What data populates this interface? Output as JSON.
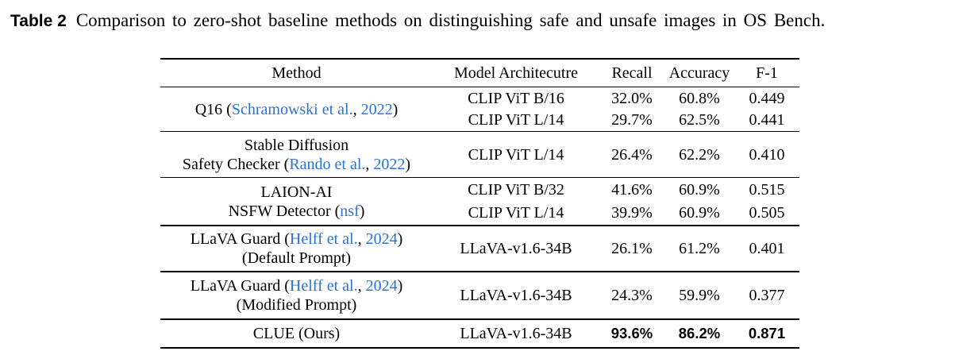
{
  "caption": {
    "label": "Table 2",
    "text": "Comparison to zero-shot baseline methods on distinguishing safe and unsafe images in OS Bench."
  },
  "colors": {
    "link": "#2a72d4",
    "text": "#000000",
    "rule": "#000000",
    "background": "#ffffff"
  },
  "table": {
    "headers": [
      "Method",
      "Model Architecutre",
      "Recall",
      "Accuracy",
      "F-1"
    ],
    "sections": [
      {
        "method_lines": [
          [
            {
              "t": "Q16 ("
            },
            {
              "t": "Schramowski et al.",
              "link": true
            },
            {
              "t": ", "
            },
            {
              "t": "2022",
              "link": true
            },
            {
              "t": ")"
            }
          ]
        ],
        "entries": [
          {
            "model": "CLIP ViT B/16",
            "recall": "32.0%",
            "accuracy": "60.8%",
            "f1": "0.449"
          },
          {
            "model": "CLIP ViT L/14",
            "recall": "29.7%",
            "accuracy": "62.5%",
            "f1": "0.441"
          }
        ],
        "bold_values": false
      },
      {
        "method_lines": [
          [
            {
              "t": "Stable Diffusion"
            }
          ],
          [
            {
              "t": "Safety Checker ("
            },
            {
              "t": "Rando et al.",
              "link": true
            },
            {
              "t": ", "
            },
            {
              "t": "2022",
              "link": true
            },
            {
              "t": ")"
            }
          ]
        ],
        "entries": [
          {
            "model": "CLIP ViT L/14",
            "recall": "26.4%",
            "accuracy": "62.2%",
            "f1": "0.410"
          }
        ],
        "bold_values": false
      },
      {
        "method_lines": [
          [
            {
              "t": "LAION-AI"
            }
          ],
          [
            {
              "t": "NSFW Detector ("
            },
            {
              "t": "nsf",
              "link": true
            },
            {
              "t": ")"
            }
          ]
        ],
        "entries": [
          {
            "model": "CLIP ViT B/32",
            "recall": "41.6%",
            "accuracy": "60.9%",
            "f1": "0.515"
          },
          {
            "model": "CLIP ViT L/14",
            "recall": "39.9%",
            "accuracy": "60.9%",
            "f1": "0.505"
          }
        ],
        "bold_values": false
      },
      {
        "method_lines": [
          [
            {
              "t": "LLaVA Guard ("
            },
            {
              "t": "Helff et al.",
              "link": true
            },
            {
              "t": ", "
            },
            {
              "t": "2024",
              "link": true
            },
            {
              "t": ")"
            }
          ],
          [
            {
              "t": "(Default Prompt)"
            }
          ]
        ],
        "entries": [
          {
            "model": "LLaVA-v1.6-34B",
            "recall": "26.1%",
            "accuracy": "61.2%",
            "f1": "0.401"
          }
        ],
        "bold_values": false
      },
      {
        "method_lines": [
          [
            {
              "t": "LLaVA Guard ("
            },
            {
              "t": "Helff et al.",
              "link": true
            },
            {
              "t": ", "
            },
            {
              "t": "2024",
              "link": true
            },
            {
              "t": ")"
            }
          ],
          [
            {
              "t": "(Modified Prompt)"
            }
          ]
        ],
        "entries": [
          {
            "model": "LLaVA-v1.6-34B",
            "recall": "24.3%",
            "accuracy": "59.9%",
            "f1": "0.377"
          }
        ],
        "bold_values": false
      },
      {
        "method_lines": [
          [
            {
              "t": "CLUE (Ours)"
            }
          ]
        ],
        "entries": [
          {
            "model": "LLaVA-v1.6-34B",
            "recall": "93.6%",
            "accuracy": "86.2%",
            "f1": "0.871"
          }
        ],
        "bold_values": true
      }
    ]
  }
}
